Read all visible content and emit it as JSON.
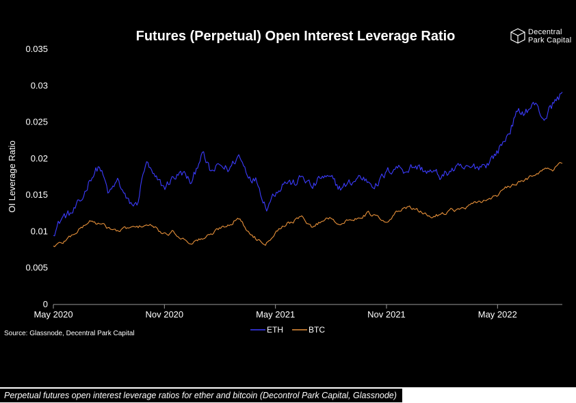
{
  "chart_data": {
    "type": "line",
    "title": "Futures (Perpetual) Open Interest Leverage Ratio",
    "xlabel": "",
    "ylabel": "OI Leverage Ratio",
    "ylim": [
      0,
      0.035
    ],
    "yticks": [
      "0",
      "0.005",
      "0.01",
      "0.015",
      "0.02",
      "0.025",
      "0.03",
      "0.035"
    ],
    "xticks": [
      "May 2020",
      "Nov 2020",
      "May 2021",
      "Nov 2021",
      "May 2022"
    ],
    "x_range_months": [
      0,
      27.5
    ],
    "grid": false,
    "legend_position": "bottom-center",
    "series": [
      {
        "name": "ETH",
        "color": "#3c3cff",
        "x": [
          0,
          0.5,
          1,
          1.5,
          2,
          2.5,
          3,
          3.5,
          4,
          4.5,
          5,
          5.5,
          6,
          6.5,
          7,
          7.5,
          8,
          8.5,
          9,
          9.5,
          10,
          10.5,
          11,
          11.5,
          12,
          12.5,
          13,
          13.5,
          14,
          14.5,
          15,
          15.5,
          16,
          16.5,
          17,
          17.5,
          18,
          18.5,
          19,
          19.5,
          20,
          20.5,
          21,
          21.5,
          22,
          22.5,
          23,
          23.5,
          24,
          24.5,
          25,
          25.5,
          26,
          26.5,
          27,
          27.5
        ],
        "values": [
          0.01,
          0.012,
          0.0125,
          0.014,
          0.0175,
          0.019,
          0.015,
          0.017,
          0.014,
          0.0135,
          0.0195,
          0.017,
          0.016,
          0.0175,
          0.018,
          0.0165,
          0.021,
          0.018,
          0.019,
          0.0185,
          0.0205,
          0.018,
          0.017,
          0.0135,
          0.0155,
          0.017,
          0.0165,
          0.0175,
          0.016,
          0.0175,
          0.017,
          0.016,
          0.0165,
          0.0175,
          0.017,
          0.0165,
          0.018,
          0.019,
          0.0185,
          0.019,
          0.0185,
          0.018,
          0.0175,
          0.0185,
          0.0185,
          0.0185,
          0.019,
          0.0195,
          0.021,
          0.023,
          0.026,
          0.0265,
          0.0275,
          0.0255,
          0.0275,
          0.029
        ]
      },
      {
        "name": "BTC",
        "color": "#e8913a",
        "x": [
          0,
          0.5,
          1,
          1.5,
          2,
          2.5,
          3,
          3.5,
          4,
          4.5,
          5,
          5.5,
          6,
          6.5,
          7,
          7.5,
          8,
          8.5,
          9,
          9.5,
          10,
          10.5,
          11,
          11.5,
          12,
          12.5,
          13,
          13.5,
          14,
          14.5,
          15,
          15.5,
          16,
          16.5,
          17,
          17.5,
          18,
          18.5,
          19,
          19.5,
          20,
          20.5,
          21,
          21.5,
          22,
          22.5,
          23,
          23.5,
          24,
          24.5,
          25,
          25.5,
          26,
          26.5,
          27,
          27.5
        ],
        "values": [
          0.008,
          0.0085,
          0.0095,
          0.0105,
          0.0115,
          0.011,
          0.0105,
          0.01,
          0.0105,
          0.0105,
          0.011,
          0.0105,
          0.0095,
          0.01,
          0.009,
          0.0085,
          0.009,
          0.0095,
          0.0105,
          0.011,
          0.012,
          0.01,
          0.009,
          0.0085,
          0.01,
          0.011,
          0.0115,
          0.012,
          0.0105,
          0.0115,
          0.012,
          0.011,
          0.0115,
          0.012,
          0.0125,
          0.012,
          0.011,
          0.0125,
          0.0135,
          0.013,
          0.0125,
          0.012,
          0.0125,
          0.013,
          0.013,
          0.0135,
          0.014,
          0.0145,
          0.015,
          0.016,
          0.0165,
          0.017,
          0.018,
          0.0185,
          0.0185,
          0.0195
        ]
      }
    ]
  },
  "source_note": "Source: Glassnode, Decentral Park Capital",
  "brand": {
    "line1": "Decentral",
    "line2": "Park Capital"
  },
  "caption": "Perpetual futures open interest leverage ratios for ether and bitcoin (Decontrol Park Capital, Glassnode)"
}
